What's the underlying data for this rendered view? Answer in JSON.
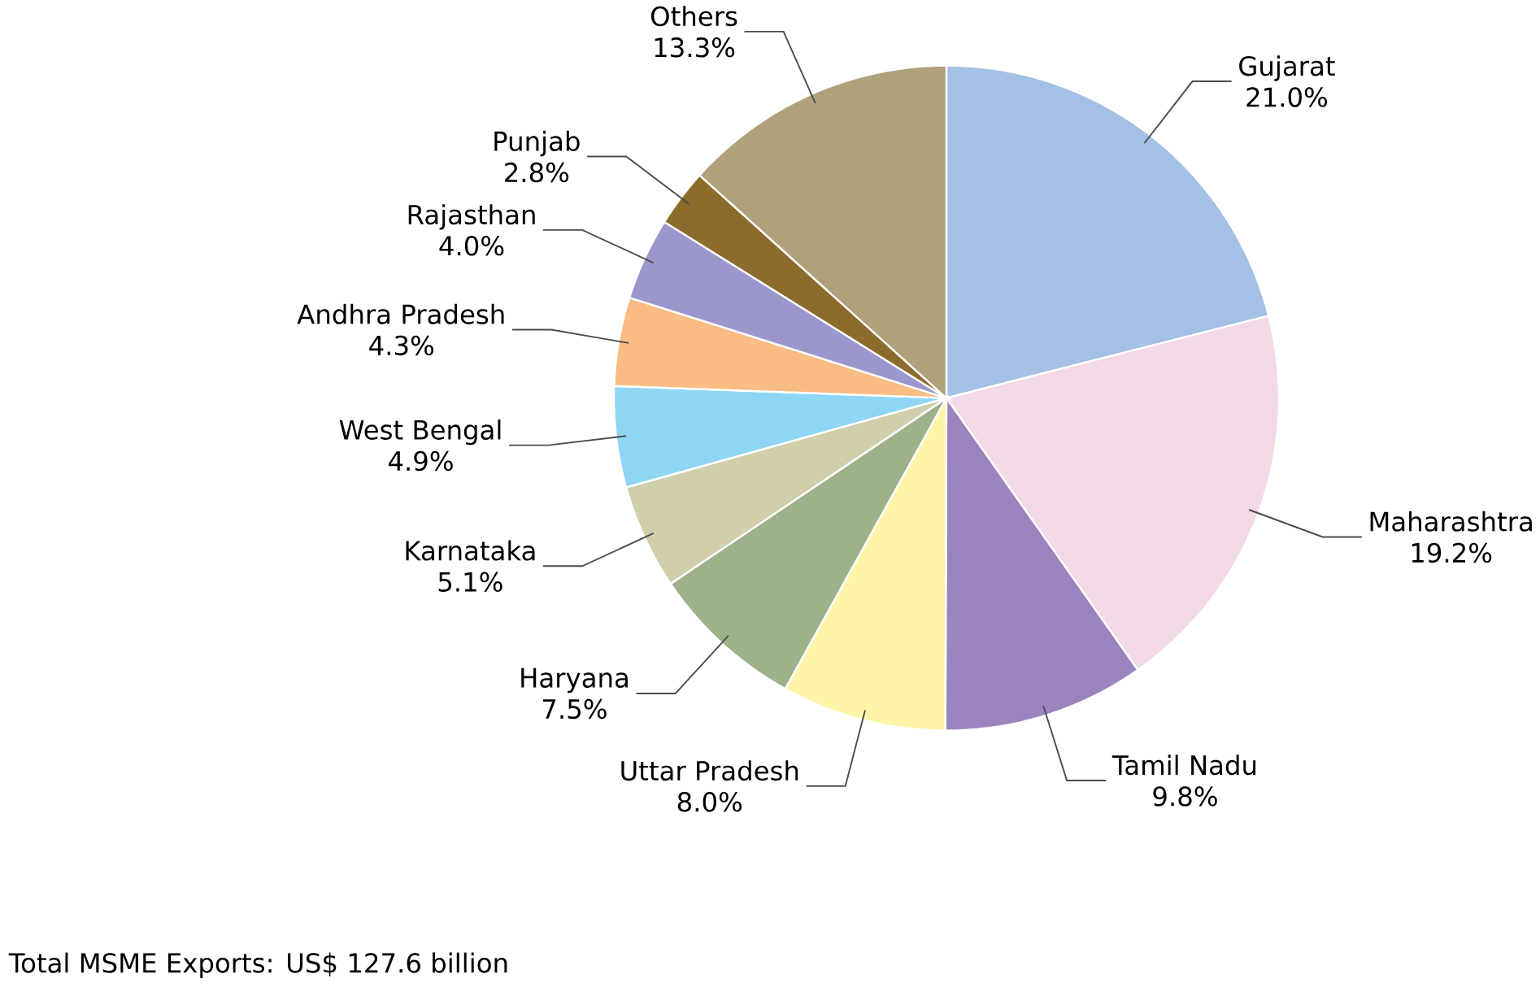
{
  "chart_data": {
    "type": "pie",
    "categories": [
      "Gujarat",
      "Maharashtra",
      "Tamil Nadu",
      "Uttar Pradesh",
      "Haryana",
      "Karnataka",
      "West Bengal",
      "Andhra Pradesh",
      "Rajasthan",
      "Punjab",
      "Others"
    ],
    "values": [
      21.0,
      19.2,
      9.8,
      8.0,
      7.5,
      5.1,
      4.9,
      4.3,
      4.0,
      2.8,
      13.3
    ],
    "value_labels": [
      "21.0%",
      "19.2%",
      "9.8%",
      "8.0%",
      "7.5%",
      "5.1%",
      "4.9%",
      "4.3%",
      "4.0%",
      "2.8%",
      "13.3%"
    ],
    "colors": [
      "#a4c0e4",
      "#f2d9e8",
      "#9b83bd",
      "#fef5a8",
      "#9db18a",
      "#d1cfab",
      "#8ed6f4",
      "#f9bc84",
      "#9b97cc",
      "#8c6c2c",
      "#b0a17d"
    ],
    "annotations": [
      "Total MSME Exports: US$ 127.6 billion"
    ]
  }
}
